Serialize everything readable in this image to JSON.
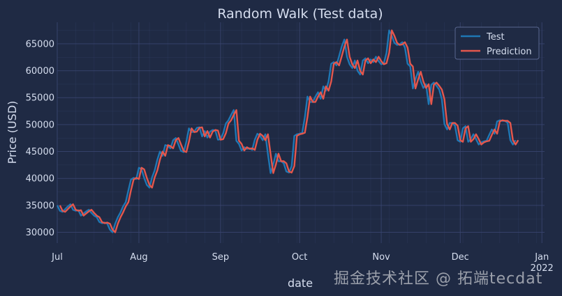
{
  "colors": {
    "background": "#1f2a44",
    "grid": "#3a4670",
    "axis_text": "#d6deef",
    "test": "#1f77b4",
    "prediction": "#e4574d"
  },
  "watermark_text": "掘金技术社区 @ 拓端tecdat",
  "chart_data": {
    "type": "line",
    "title": "Random Walk (Test data)",
    "xlabel": "date",
    "ylabel": "Price (USD)",
    "x_range": [
      "2021-07-01",
      "2022-01-02"
    ],
    "ylim": [
      28000,
      69000
    ],
    "yticks": [
      30000,
      35000,
      40000,
      45000,
      50000,
      55000,
      60000,
      65000
    ],
    "xticks": [
      {
        "date": "2021-07-01",
        "label": "Jul",
        "sublabel": ""
      },
      {
        "date": "2021-08-01",
        "label": "Aug",
        "sublabel": ""
      },
      {
        "date": "2021-09-01",
        "label": "Sep",
        "sublabel": ""
      },
      {
        "date": "2021-10-01",
        "label": "Oct",
        "sublabel": ""
      },
      {
        "date": "2021-11-01",
        "label": "Nov",
        "sublabel": ""
      },
      {
        "date": "2021-12-01",
        "label": "Dec",
        "sublabel": ""
      },
      {
        "date": "2022-01-01",
        "label": "Jan",
        "sublabel": "2022"
      }
    ],
    "grid": true,
    "legend_position": "top-right",
    "legend": [
      "Test",
      "Prediction"
    ],
    "x_start": "2021-07-01",
    "test_values": [
      35000,
      34000,
      33800,
      34300,
      34800,
      35200,
      34200,
      34000,
      34100,
      33100,
      33500,
      33900,
      34200,
      33600,
      33100,
      32800,
      31900,
      31700,
      31800,
      31600,
      30500,
      30000,
      31600,
      32800,
      33700,
      34800,
      35600,
      37800,
      39800,
      40100,
      39900,
      42000,
      41700,
      40100,
      38800,
      38300,
      40200,
      41500,
      43500,
      45000,
      44200,
      46200,
      46000,
      45600,
      47100,
      47500,
      46300,
      45100,
      44900,
      46800,
      49300,
      48600,
      48700,
      49400,
      49500,
      47800,
      48800,
      47600,
      48700,
      49000,
      48900,
      47200,
      47300,
      48400,
      50200,
      50800,
      51800,
      52700,
      47000,
      46400,
      45200,
      45800,
      45500,
      45600,
      45300,
      47200,
      48300,
      47900,
      47100,
      48200,
      44500,
      41000,
      42600,
      44600,
      43200,
      43200,
      42800,
      41300,
      41100,
      42300,
      47900,
      48200,
      48300,
      48500,
      51400,
      55200,
      54200,
      54200,
      55200,
      56000,
      54800,
      57100,
      56300,
      58000,
      61300,
      61600,
      61000,
      62700,
      64500,
      65800,
      62600,
      61200,
      60500,
      61900,
      60000,
      59300,
      61900,
      62300,
      61400,
      62100,
      61600,
      62600,
      61800,
      61200,
      61400,
      63300,
      67500,
      66500,
      65200,
      64800,
      64900,
      65300,
      64300,
      61300,
      60800,
      56700,
      58400,
      59800,
      58000,
      56800,
      57500,
      53800,
      57400,
      57800,
      57200,
      56500,
      54700,
      50100,
      49100,
      50300,
      50300,
      49800,
      47100,
      46800,
      49300,
      49700,
      46800,
      47300,
      48200,
      47300,
      46300,
      46700,
      46900,
      47000,
      48100,
      49100,
      48300,
      50600,
      50800,
      50700,
      50700,
      50300,
      47100,
      46300,
      47100
    ]
  }
}
